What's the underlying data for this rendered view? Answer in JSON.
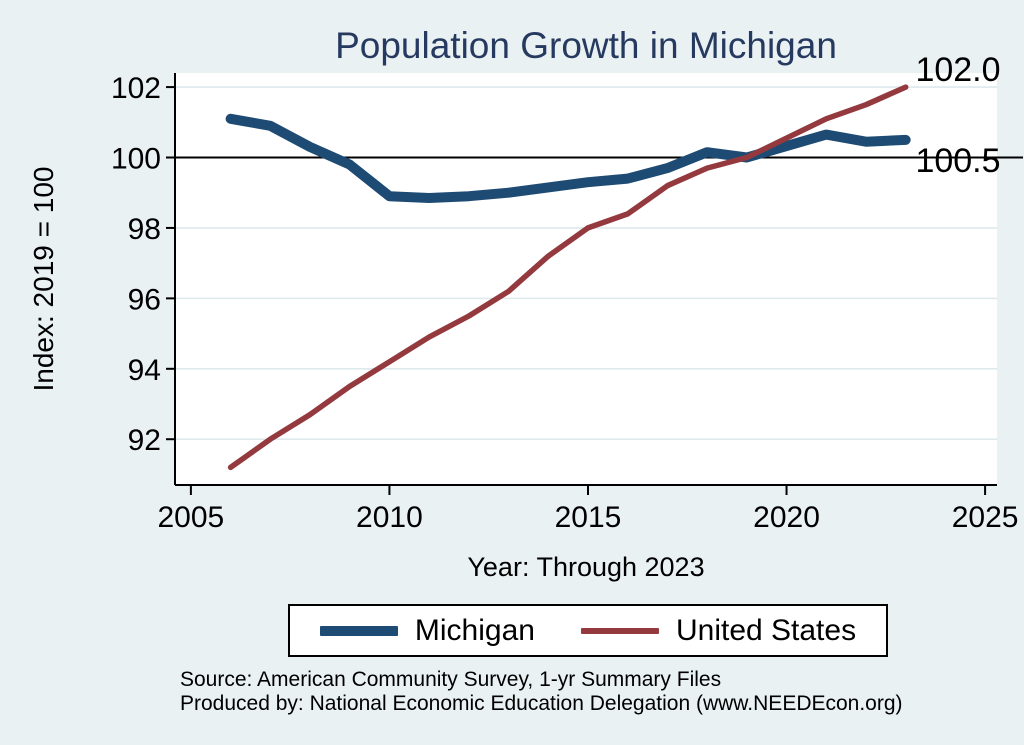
{
  "figure": {
    "title": "Population Growth in Michigan",
    "y_axis_title": "Index: 2019 = 100",
    "x_axis_title": "Year: Through 2023",
    "source_line1": "Source: American Community Survey, 1-yr Summary Files",
    "source_line2": "Produced by: National Economic Education Delegation (www.NEEDEcon.org)"
  },
  "colors": {
    "background": "#eaf1f3",
    "plot_background": "#ffffff",
    "title_text": "#26395f",
    "michigan_line": "#1e4b73",
    "united_states_line": "#943a3f",
    "gridline": "#dee9ee",
    "axis": "#000000",
    "reference_line": "#000000"
  },
  "chart_data": {
    "type": "line",
    "title": "Population Growth in Michigan",
    "xlabel": "Year: Through 2023",
    "ylabel": "Index: 2019 = 100",
    "grid": true,
    "legend_position": "bottom",
    "xlim": [
      2004.6,
      2025.3
    ],
    "ylim": [
      90.7,
      102.4
    ],
    "xticks": [
      2005,
      2010,
      2015,
      2020,
      2025
    ],
    "yticks": [
      92,
      94,
      96,
      98,
      100,
      102
    ],
    "reference_line_y": 100,
    "x": [
      2006,
      2007,
      2008,
      2009,
      2010,
      2011,
      2012,
      2013,
      2014,
      2015,
      2016,
      2017,
      2018,
      2019,
      2021,
      2022,
      2023
    ],
    "series": [
      {
        "name": "Michigan",
        "color": "#1e4b73",
        "line_width": 10,
        "values": [
          101.1,
          100.9,
          100.3,
          99.8,
          98.9,
          98.85,
          98.9,
          99.0,
          99.15,
          99.3,
          99.4,
          99.7,
          100.15,
          100.0,
          100.65,
          100.45,
          100.5
        ]
      },
      {
        "name": "United States",
        "color": "#943a3f",
        "line_width": 5.5,
        "values": [
          91.2,
          92.0,
          92.7,
          93.5,
          94.2,
          94.9,
          95.5,
          96.2,
          97.2,
          98.0,
          98.4,
          99.2,
          99.7,
          100.0,
          101.1,
          101.5,
          102.0
        ]
      }
    ],
    "end_labels": [
      {
        "text": "102.0",
        "series": "United States"
      },
      {
        "text": "100.5",
        "series": "Michigan"
      }
    ]
  },
  "legend": {
    "items": [
      {
        "label": "Michigan",
        "color": "#1e4b73"
      },
      {
        "label": "United States",
        "color": "#943a3f"
      }
    ]
  }
}
